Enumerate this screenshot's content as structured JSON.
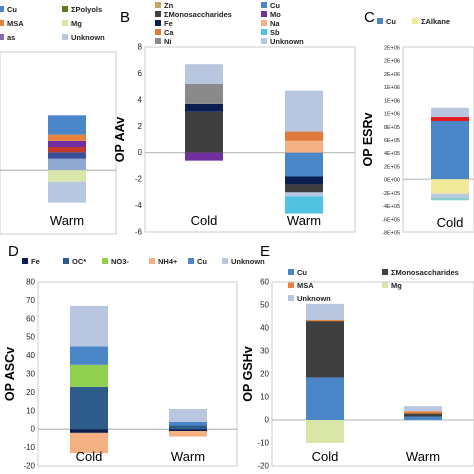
{
  "chart_data": [
    {
      "panel": "A",
      "type": "bar",
      "stacked": true,
      "categories": [
        "Warm"
      ],
      "xlabel": "",
      "ylabel": "",
      "ylim": [
        -8,
        14
      ],
      "gridlines": false,
      "legend": {
        "placement": "top",
        "entries": [
          {
            "label": "Cu",
            "color": "#4a86c8"
          },
          {
            "label": "ΣPolyols",
            "color": "#5c7a1f"
          },
          {
            "label": "MSA",
            "color": "#e8823a"
          },
          {
            "label": "Mg",
            "color": "#d9e6a8"
          },
          {
            "label": "as",
            "color": "#8a6aa8"
          },
          {
            "label": "Unknown",
            "color": "#b8c6e0"
          }
        ]
      },
      "series": [
        {
          "color": "#8fa8d0",
          "values": [
            1.5
          ]
        },
        {
          "color": "#3a4f9a",
          "values": [
            0.8
          ]
        },
        {
          "color": "#c0392b",
          "values": [
            0.7
          ]
        },
        {
          "color": "#6f2f9f",
          "values": [
            0.8
          ]
        },
        {
          "color": "#e8823a",
          "values": [
            0.8
          ]
        },
        {
          "color": "#4a86c8",
          "values": [
            2.5
          ]
        },
        {
          "color": "#d9e6a8",
          "values": [
            -1.5
          ]
        },
        {
          "color": "#b8c6e0",
          "values": [
            -2.7
          ]
        }
      ]
    },
    {
      "panel": "B",
      "type": "bar",
      "stacked": true,
      "categories": [
        "Cold",
        "Warm"
      ],
      "xlabel": "",
      "ylabel": "OP AAv",
      "yticks": [
        "-6",
        "-4",
        "-2",
        "0",
        "2",
        "4",
        "6",
        "8"
      ],
      "ylim": [
        -6,
        8
      ],
      "gridlines": false,
      "legend": {
        "placement": "top",
        "entries": [
          {
            "label": "Zn",
            "color": "#c8a860"
          },
          {
            "label": "Cu",
            "color": "#4a86c8"
          },
          {
            "label": "ΣMonosaccharides",
            "color": "#3f3f3f"
          },
          {
            "label": "Mo",
            "color": "#6f2f9f"
          },
          {
            "label": "Fe",
            "color": "#0a1f50"
          },
          {
            "label": "Na",
            "color": "#f4b183"
          },
          {
            "label": "Ca",
            "color": "#e07a3a"
          },
          {
            "label": "Sb",
            "color": "#4fc3e0"
          },
          {
            "label": "Ni",
            "color": "#8a8a8a"
          },
          {
            "label": "Unknown",
            "color": "#b8c6e0"
          }
        ]
      },
      "series": [
        {
          "name": "ΣMonosaccharides",
          "color": "#3f3f3f",
          "values": [
            3.1,
            0.0
          ]
        },
        {
          "name": "Fe",
          "color": "#0a1f50",
          "values": [
            0.6,
            0.0
          ]
        },
        {
          "name": "Ni",
          "color": "#8a8a8a",
          "values": [
            1.5,
            0.0
          ]
        },
        {
          "name": "Na",
          "color": "#f4b183",
          "values": [
            0.0,
            0.9
          ]
        },
        {
          "name": "Ca",
          "color": "#e07a3a",
          "values": [
            0.0,
            0.7
          ]
        },
        {
          "name": "Unknown",
          "color": "#b8c6e0",
          "values": [
            1.5,
            3.1
          ]
        },
        {
          "name": "Mo",
          "color": "#6f2f9f",
          "values": [
            -0.6,
            0.0
          ]
        },
        {
          "name": "Cu",
          "color": "#4a86c8",
          "values": [
            0.0,
            -1.8
          ]
        },
        {
          "name": "Fe",
          "color": "#0a1f50",
          "values": [
            0.0,
            -0.6
          ]
        },
        {
          "name": "ΣMonosaccharides",
          "color": "#3f3f3f",
          "values": [
            0.0,
            -0.6
          ]
        },
        {
          "name": "Unknown",
          "color": "#b8c6e0",
          "values": [
            0.0,
            -0.3
          ]
        },
        {
          "name": "Sb",
          "color": "#4fc3e0",
          "values": [
            0.0,
            -1.3
          ]
        }
      ]
    },
    {
      "panel": "C",
      "type": "bar",
      "stacked": true,
      "categories": [
        "Cold"
      ],
      "xlabel": "",
      "ylabel": "OP ESRv",
      "yticks": [
        "-8E+05",
        "-6E+05",
        "-4E+05",
        "-2E+05",
        "0E+00",
        "2E+05",
        "4E+05",
        "6E+05",
        "8E+05",
        "1E+06",
        "1E+06",
        "1E+06",
        "2E+06",
        "2E+06",
        "2E+06"
      ],
      "ylim": [
        -800000,
        2000000
      ],
      "gridlines": false,
      "legend": {
        "placement": "top",
        "entries": [
          {
            "label": "Cu",
            "color": "#4a86c8"
          },
          {
            "label": "ΣAlkane",
            "color": "#f0ea9a"
          }
        ]
      },
      "series": [
        {
          "name": "Cu",
          "color": "#4a86c8",
          "values": [
            880000
          ]
        },
        {
          "color": "#e41a1c",
          "values": [
            60000
          ]
        },
        {
          "color": "#b8c6e0",
          "values": [
            140000
          ]
        },
        {
          "name": "ΣAlkane",
          "color": "#f0ea9a",
          "values": [
            -220000
          ]
        },
        {
          "color": "#b8c6e0",
          "values": [
            -60000
          ]
        },
        {
          "color": "#8ad0c8",
          "values": [
            -40000
          ]
        }
      ]
    },
    {
      "panel": "D",
      "type": "bar",
      "stacked": true,
      "categories": [
        "Cold",
        "Warm"
      ],
      "xlabel": "",
      "ylabel": "OP ASCv",
      "yticks": [
        "-20",
        "-10",
        "0",
        "10",
        "20",
        "30",
        "40",
        "50",
        "60",
        "70",
        "80"
      ],
      "ylim": [
        -20,
        80
      ],
      "gridlines": false,
      "legend": {
        "placement": "top",
        "entries": [
          {
            "label": "Fe",
            "color": "#0a1f50"
          },
          {
            "label": "OC*",
            "color": "#2e5c8a"
          },
          {
            "label": "NO3-",
            "color": "#8fd14f"
          },
          {
            "label": "NH4+",
            "color": "#f4b183"
          },
          {
            "label": "Cu",
            "color": "#4a86c8"
          },
          {
            "label": "Unknown",
            "color": "#b8c6e0"
          }
        ]
      },
      "series": [
        {
          "name": "OC*",
          "color": "#2e5c8a",
          "values": [
            23,
            2
          ]
        },
        {
          "name": "NO3-",
          "color": "#8fd14f",
          "values": [
            12,
            0
          ]
        },
        {
          "name": "Cu",
          "color": "#4a86c8",
          "values": [
            10,
            2
          ]
        },
        {
          "name": "Unknown",
          "color": "#b8c6e0",
          "values": [
            22,
            7
          ]
        },
        {
          "name": "Fe",
          "color": "#0a1f50",
          "values": [
            -2,
            -1
          ]
        },
        {
          "name": "NH4+",
          "color": "#f4b183",
          "values": [
            -11,
            -3
          ]
        }
      ]
    },
    {
      "panel": "E",
      "type": "bar",
      "stacked": true,
      "categories": [
        "Cold",
        "Warm"
      ],
      "xlabel": "",
      "ylabel": "OP GSHv",
      "yticks": [
        "-20",
        "-10",
        "0",
        "10",
        "20",
        "30",
        "40",
        "50",
        "60"
      ],
      "ylim": [
        -20,
        60
      ],
      "gridlines": false,
      "legend": {
        "placement": "top",
        "entries": [
          {
            "label": "Cu",
            "color": "#4a86c8"
          },
          {
            "label": "ΣMonosaccharides",
            "color": "#3f3f3f"
          },
          {
            "label": "MSA",
            "color": "#e8823a"
          },
          {
            "label": "Mg",
            "color": "#d9e6a8"
          },
          {
            "label": "Unknown",
            "color": "#b8c6e0"
          }
        ]
      },
      "series": [
        {
          "name": "Cu",
          "color": "#4a86c8",
          "values": [
            18.5,
            1.5
          ]
        },
        {
          "name": "ΣMonosaccharides",
          "color": "#3f3f3f",
          "values": [
            24.5,
            1.3
          ]
        },
        {
          "name": "MSA",
          "color": "#e8823a",
          "values": [
            0.5,
            1.0
          ]
        },
        {
          "name": "Unknown",
          "color": "#b8c6e0",
          "values": [
            7,
            2.2
          ]
        },
        {
          "name": "Mg",
          "color": "#d9e6a8",
          "values": [
            -10,
            0
          ]
        }
      ]
    }
  ]
}
